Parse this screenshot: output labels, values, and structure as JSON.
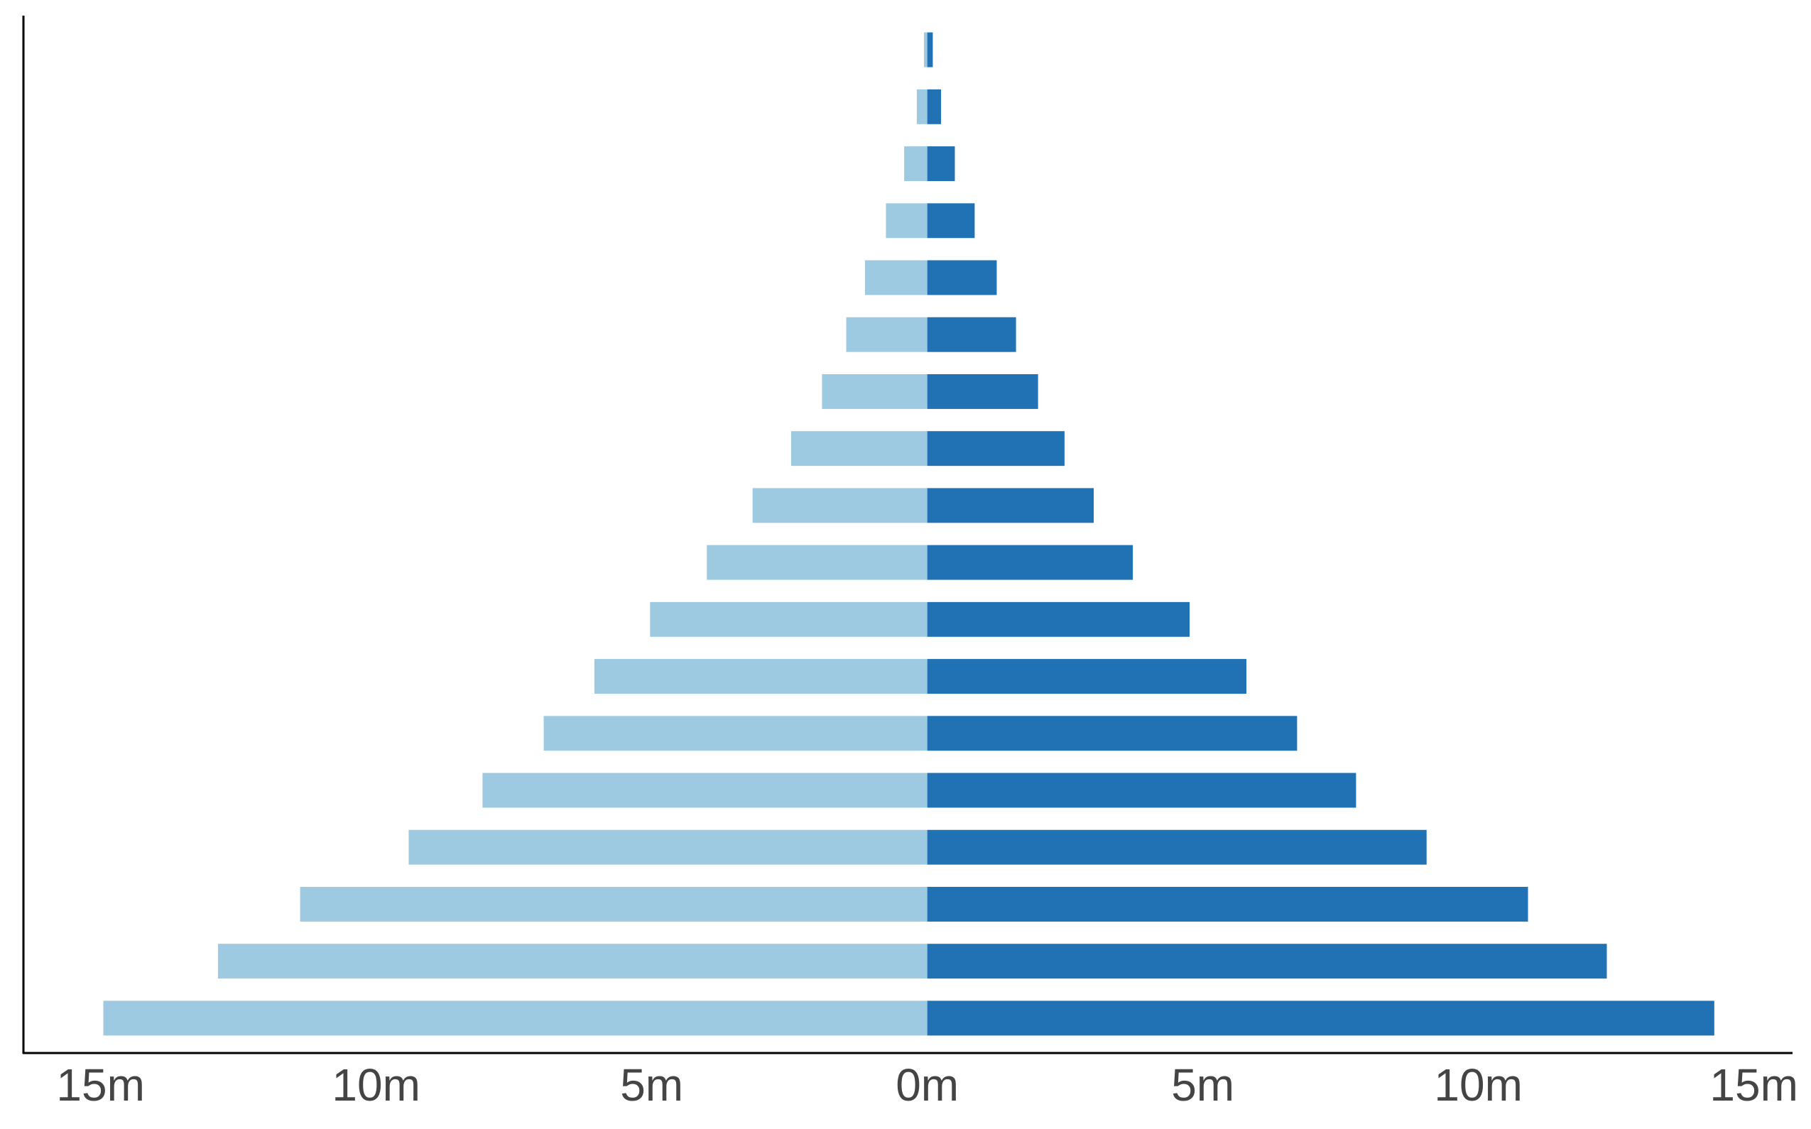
{
  "chart_data": {
    "type": "bar",
    "orientation": "horizontal",
    "categories": [
      null,
      null,
      null,
      null,
      null,
      null,
      null,
      null,
      null,
      null,
      null,
      null,
      null,
      null,
      null,
      null,
      null,
      null
    ],
    "series": [
      {
        "color": "#9ecae1",
        "values": [
          -0.06,
          -0.19,
          -0.42,
          -0.75,
          -1.13,
          -1.47,
          -1.91,
          -2.47,
          -3.17,
          -4.0,
          -5.03,
          -6.04,
          -6.96,
          -8.07,
          -9.41,
          -11.38,
          -12.87,
          -14.95
        ]
      },
      {
        "color": "#2171b5",
        "values": [
          0.1,
          0.25,
          0.5,
          0.86,
          1.26,
          1.61,
          2.01,
          2.49,
          3.02,
          3.73,
          4.76,
          5.79,
          6.71,
          7.78,
          9.06,
          10.9,
          12.33,
          14.28
        ]
      }
    ],
    "xlim": [
      -16.4,
      15.7
    ],
    "xticks": [
      {
        "value": -15,
        "label": "15m"
      },
      {
        "value": -10,
        "label": "10m"
      },
      {
        "value": -5,
        "label": "5m"
      },
      {
        "value": 0,
        "label": "0m"
      },
      {
        "value": 5,
        "label": "5m"
      },
      {
        "value": 10,
        "label": "10m"
      },
      {
        "value": 15,
        "label": "15m"
      }
    ],
    "grid": false
  }
}
